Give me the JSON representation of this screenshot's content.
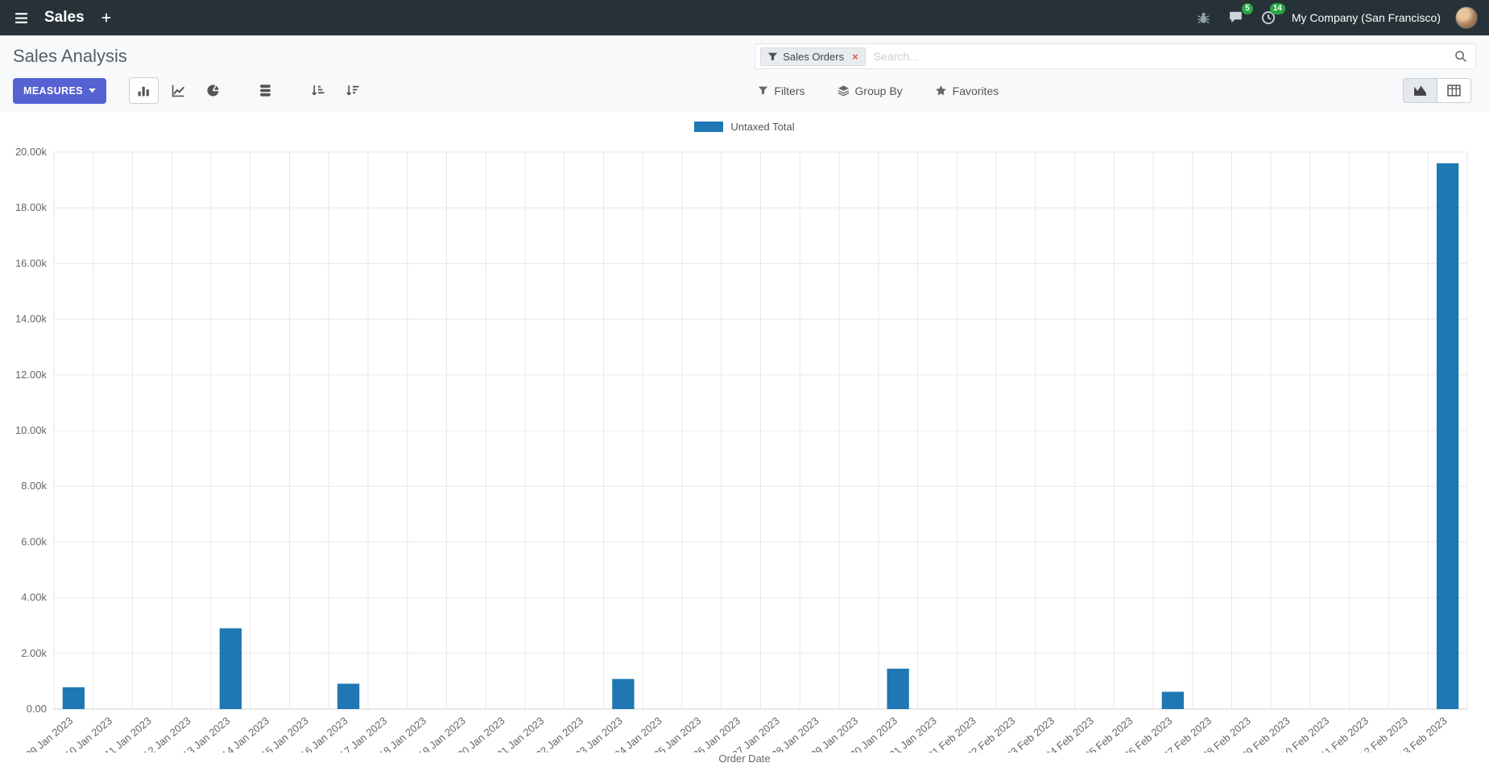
{
  "navbar": {
    "app_name": "Sales",
    "company": "My Company (San Francisco)",
    "badges": {
      "messages": "5",
      "activities": "14"
    }
  },
  "control_panel": {
    "title": "Sales Analysis",
    "measures_label": "MEASURES",
    "search": {
      "facet_label": "Sales Orders",
      "remove_label": "×",
      "placeholder": "Search..."
    },
    "filters_label": "Filters",
    "group_by_label": "Group By",
    "favorites_label": "Favorites"
  },
  "icons": {
    "apps-menu": "hamburger",
    "new-tab": "plus",
    "debug": "bug",
    "messages": "chat-bubble",
    "activities": "clock",
    "filter": "funnel",
    "search": "magnifier",
    "bar-chart": "vertical-bars",
    "line-chart": "polyline",
    "pie-chart": "pie",
    "stacked": "database-pills",
    "sort-asc": "sort-amount-asc",
    "sort-desc": "sort-amount-desc",
    "group-by": "layers",
    "favorites": "star",
    "graph-view": "area-chart",
    "pivot-view": "table-grid",
    "dropdown": "caret-down"
  },
  "colors": {
    "navbar_bg": "#263238",
    "primary_button_bg": "#5661d2",
    "badge_bg": "#28a745",
    "bar_color": "#1f77b4"
  },
  "chart_data": {
    "type": "bar",
    "title": "",
    "xlabel": "Order Date",
    "ylabel": "",
    "ylim": [
      0,
      20000
    ],
    "grid": true,
    "legend_position": "top",
    "y_ticks": [
      "0.00",
      "2.00k",
      "4.00k",
      "6.00k",
      "8.00k",
      "10.00k",
      "12.00k",
      "14.00k",
      "16.00k",
      "18.00k",
      "20.00k"
    ],
    "categories": [
      "09 Jan 2023",
      "10 Jan 2023",
      "11 Jan 2023",
      "12 Jan 2023",
      "13 Jan 2023",
      "14 Jan 2023",
      "15 Jan 2023",
      "16 Jan 2023",
      "17 Jan 2023",
      "18 Jan 2023",
      "19 Jan 2023",
      "20 Jan 2023",
      "21 Jan 2023",
      "22 Jan 2023",
      "23 Jan 2023",
      "24 Jan 2023",
      "25 Jan 2023",
      "26 Jan 2023",
      "27 Jan 2023",
      "28 Jan 2023",
      "29 Jan 2023",
      "30 Jan 2023",
      "31 Jan 2023",
      "01 Feb 2023",
      "02 Feb 2023",
      "03 Feb 2023",
      "04 Feb 2023",
      "05 Feb 2023",
      "06 Feb 2023",
      "07 Feb 2023",
      "08 Feb 2023",
      "09 Feb 2023",
      "10 Feb 2023",
      "11 Feb 2023",
      "12 Feb 2023",
      "13 Feb 2023"
    ],
    "series": [
      {
        "name": "Untaxed Total",
        "color": "#1f77b4",
        "values": [
          780,
          0,
          0,
          0,
          2900,
          0,
          0,
          910,
          0,
          0,
          0,
          0,
          0,
          0,
          1080,
          0,
          0,
          0,
          0,
          0,
          0,
          1450,
          0,
          0,
          0,
          0,
          0,
          0,
          620,
          0,
          0,
          0,
          0,
          0,
          0,
          19600
        ]
      }
    ]
  }
}
